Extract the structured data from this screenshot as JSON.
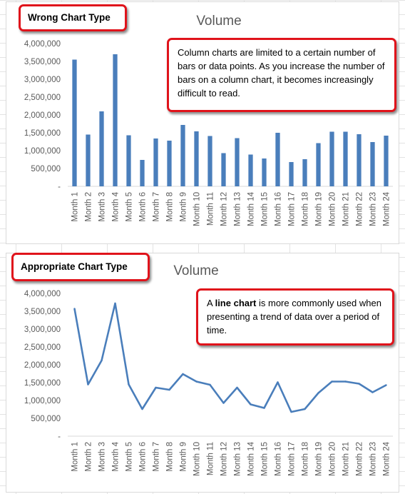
{
  "chart_data": [
    {
      "type": "bar",
      "title": "Volume",
      "categories": [
        "Month 1",
        "Month 2",
        "Month 3",
        "Month 4",
        "Month 5",
        "Month 6",
        "Month 7",
        "Month 8",
        "Month 9",
        "Month 10",
        "Month 11",
        "Month 12",
        "Month 13",
        "Month 14",
        "Month 15",
        "Month 16",
        "Month 17",
        "Month 18",
        "Month 19",
        "Month 20",
        "Month 21",
        "Month 22",
        "Month 23",
        "Month 24"
      ],
      "values": [
        3550000,
        1450000,
        2100000,
        3700000,
        1430000,
        740000,
        1340000,
        1280000,
        1720000,
        1540000,
        1410000,
        930000,
        1350000,
        890000,
        780000,
        1500000,
        680000,
        760000,
        1210000,
        1530000,
        1530000,
        1460000,
        1240000,
        1420000
      ],
      "ylim": [
        0,
        4000000
      ],
      "yticks": [
        "-",
        "500,000",
        "1,000,000",
        "1,500,000",
        "2,000,000",
        "2,500,000",
        "3,000,000",
        "3,500,000",
        "4,000,000"
      ],
      "color": "#4a7ebb"
    },
    {
      "type": "line",
      "title": "Volume",
      "categories": [
        "Month 1",
        "Month 2",
        "Month 3",
        "Month 4",
        "Month 5",
        "Month 6",
        "Month 7",
        "Month 8",
        "Month 9",
        "Month 10",
        "Month 11",
        "Month 12",
        "Month 13",
        "Month 14",
        "Month 15",
        "Month 16",
        "Month 17",
        "Month 18",
        "Month 19",
        "Month 20",
        "Month 21",
        "Month 22",
        "Month 23",
        "Month 24"
      ],
      "values": [
        3570000,
        1450000,
        2120000,
        3720000,
        1450000,
        760000,
        1360000,
        1300000,
        1740000,
        1530000,
        1440000,
        930000,
        1360000,
        890000,
        790000,
        1510000,
        680000,
        760000,
        1210000,
        1530000,
        1530000,
        1470000,
        1230000,
        1430000
      ],
      "ylim": [
        0,
        4000000
      ],
      "yticks": [
        "-",
        "500,000",
        "1,000,000",
        "1,500,000",
        "2,000,000",
        "2,500,000",
        "3,000,000",
        "3,500,000",
        "4,000,000"
      ],
      "color": "#4a7ebb"
    }
  ],
  "callouts": {
    "wrong_label": "Wrong Chart Type",
    "wrong_note": "Column charts are limited to a certain number of bars or data points. As you increase the number of bars on a column chart, it becomes increasingly difficult to read.",
    "appropriate_label": "Appropriate Chart Type",
    "appropriate_note_pre": "A ",
    "appropriate_note_bold": "line chart",
    "appropriate_note_post": " is more commonly used when presenting a trend of data over a period of time."
  }
}
